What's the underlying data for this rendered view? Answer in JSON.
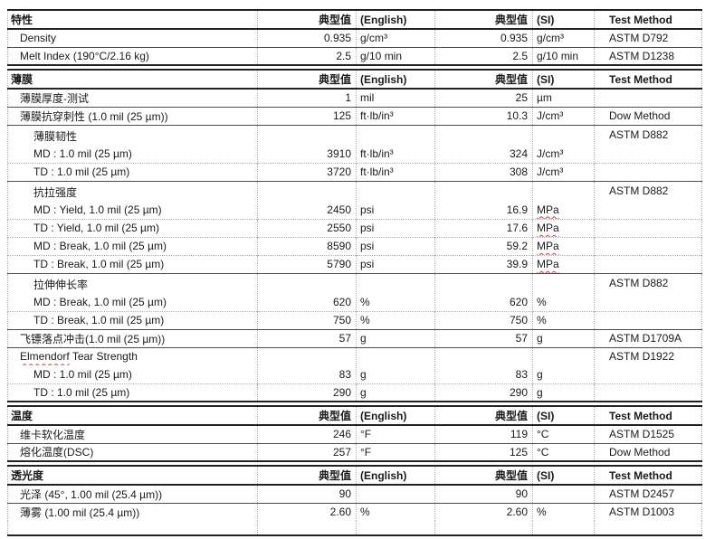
{
  "colors": {
    "squiggle_red": "#e53935"
  },
  "column_headers": {
    "typical": "典型值",
    "english": "(English)",
    "si": "(SI)",
    "method": "Test Method"
  },
  "sections": [
    {
      "title": "特性",
      "rows": [
        {
          "kind": "data",
          "label": "Density",
          "en_value": "0.935",
          "en_unit": "g/cm³",
          "si_value": "0.935",
          "si_unit": "g/cm³",
          "method": "ASTM D792"
        },
        {
          "kind": "data",
          "label": "Melt Index (190°C/2.16 kg)",
          "en_value": "2.5",
          "en_unit": "g/10 min",
          "si_value": "2.5",
          "si_unit": "g/10 min",
          "method": "ASTM D1238"
        }
      ]
    },
    {
      "title": "薄膜",
      "rows": [
        {
          "kind": "data",
          "label": "薄膜厚度-测试",
          "en_value": "1",
          "en_unit": "mil",
          "si_value": "25",
          "si_unit": "µm",
          "method": ""
        },
        {
          "kind": "data",
          "label": "薄膜抗穿刺性 (1.0 mil (25 µm))",
          "en_value": "125",
          "en_unit": "ft·lb/in³",
          "si_value": "10.3",
          "si_unit": "J/cm³",
          "method": "Dow Method"
        },
        {
          "kind": "group",
          "group_title": "薄膜韧性",
          "label": "MD : 1.0 mil (25 µm)",
          "en_value": "3910",
          "en_unit": "ft·lb/in³",
          "si_value": "324",
          "si_unit": "J/cm³",
          "method": "ASTM D882"
        },
        {
          "kind": "sub",
          "label": "TD : 1.0 mil (25 µm)",
          "en_value": "3720",
          "en_unit": "ft·lb/in³",
          "si_value": "308",
          "si_unit": "J/cm³",
          "method": ""
        },
        {
          "kind": "group",
          "group_title": "抗拉强度",
          "label": "MD : Yield, 1.0 mil (25 µm)",
          "en_value": "2450",
          "en_unit": "psi",
          "si_value": "16.9",
          "si_unit": "MPa",
          "si_unit_squiggle": true,
          "method": "ASTM D882"
        },
        {
          "kind": "sub",
          "label": "TD : Yield, 1.0 mil (25 µm)",
          "en_value": "2550",
          "en_unit": "psi",
          "si_value": "17.6",
          "si_unit": "MPa",
          "si_unit_squiggle": true,
          "method": ""
        },
        {
          "kind": "sub",
          "label": "MD : Break, 1.0 mil (25 µm)",
          "en_value": "8590",
          "en_unit": "psi",
          "si_value": "59.2",
          "si_unit": "MPa",
          "si_unit_squiggle": true,
          "method": ""
        },
        {
          "kind": "sub",
          "label": "TD : Break, 1.0 mil (25 µm)",
          "en_value": "5790",
          "en_unit": "psi",
          "si_value": "39.9",
          "si_unit": "MPa",
          "si_unit_squiggle": true,
          "method": ""
        },
        {
          "kind": "group",
          "group_title": "拉伸伸长率",
          "label": "MD : Break, 1.0 mil (25 µm)",
          "en_value": "620",
          "en_unit": "%",
          "si_value": "620",
          "si_unit": "%",
          "method": "ASTM D882"
        },
        {
          "kind": "sub",
          "label": "TD : Break, 1.0 mil (25 µm)",
          "en_value": "750",
          "en_unit": "%",
          "si_value": "750",
          "si_unit": "%",
          "method": ""
        },
        {
          "kind": "data",
          "label": "飞镖落点冲击(1.0 mil (25 µm))",
          "en_value": "57",
          "en_unit": "g",
          "si_value": "57",
          "si_unit": "g",
          "method": "ASTM D1709A"
        },
        {
          "kind": "data",
          "label_squiggle": "Elmendorf",
          "label_rest": " Tear Strength",
          "en_value": "",
          "en_unit": "",
          "si_value": "",
          "si_unit": "",
          "method": "ASTM D1922"
        },
        {
          "kind": "sub_first",
          "label": "MD : 1.0 mil (25 µm)",
          "en_value": "83",
          "en_unit": "g",
          "si_value": "83",
          "si_unit": "g",
          "method": ""
        },
        {
          "kind": "sub",
          "label": "TD : 1.0 mil (25 µm)",
          "en_value": "290",
          "en_unit": "g",
          "si_value": "290",
          "si_unit": "g",
          "method": ""
        }
      ]
    },
    {
      "title": "温度",
      "rows": [
        {
          "kind": "data",
          "label": "维卡软化温度",
          "en_value": "246",
          "en_unit": "°F",
          "si_value": "119",
          "si_unit": "°C",
          "method": "ASTM D1525"
        },
        {
          "kind": "data",
          "label": "熔化温度(DSC)",
          "en_value": "257",
          "en_unit": "°F",
          "si_value": "125",
          "si_unit": "°C",
          "method": "Dow Method"
        }
      ]
    },
    {
      "title": "透光度",
      "rows": [
        {
          "kind": "data",
          "label": "光泽 (45°, 1.00 mil (25.4 µm))",
          "en_value": "90",
          "en_unit": "",
          "si_value": "90",
          "si_unit": "",
          "method": "ASTM D2457"
        },
        {
          "kind": "data",
          "label": "薄雾 (1.00 mil (25.4 µm))",
          "en_value": "2.60",
          "en_unit": "%",
          "si_value": "2.60",
          "si_unit": "%",
          "method": "ASTM D1003"
        },
        {
          "kind": "spacer"
        }
      ]
    }
  ]
}
